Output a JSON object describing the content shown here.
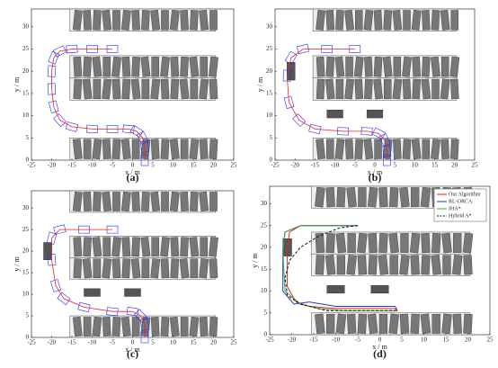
{
  "chart_data": [
    {
      "type": "line",
      "label": "(a)",
      "xlabel": "x / m",
      "ylabel": "y / m",
      "xlim": [
        -25,
        25
      ],
      "ylim": [
        0,
        34
      ],
      "xticks": [
        -25,
        -20,
        -15,
        -10,
        -5,
        0,
        5,
        10,
        15,
        20,
        25
      ],
      "yticks": [
        0,
        5,
        10,
        15,
        20,
        25,
        30
      ],
      "series": [
        {
          "color": "#1f2bff",
          "x": [
            -5,
            -10,
            -15,
            -18,
            -19.5,
            -20,
            -20,
            -19.5,
            -18,
            -15,
            -10,
            -5,
            -1,
            1,
            2.5,
            3,
            3
          ],
          "y": [
            25,
            25,
            25,
            24.5,
            23,
            20,
            16,
            12,
            9,
            7.5,
            7,
            7,
            7,
            6.5,
            5,
            3,
            0
          ]
        }
      ]
    },
    {
      "type": "line",
      "label": "(b)",
      "xlabel": "x / m",
      "ylabel": "y / m",
      "xlim": [
        -25,
        25
      ],
      "ylim": [
        0,
        34
      ],
      "xticks": [
        -25,
        -20,
        -15,
        -10,
        -5,
        0,
        5,
        10,
        15,
        20,
        25
      ],
      "yticks": [
        0,
        5,
        10,
        15,
        20,
        25,
        30
      ],
      "series": [
        {
          "color": "#1f2bff",
          "x": [
            -5,
            -12,
            -18,
            -21,
            -22,
            -21.5,
            -19,
            -15,
            -8,
            -2,
            1,
            2.5,
            3,
            3
          ],
          "y": [
            25,
            25,
            25,
            23,
            19,
            13,
            9,
            7,
            6.5,
            6.5,
            6,
            4.5,
            2,
            0
          ]
        }
      ]
    },
    {
      "type": "line",
      "label": "(c)",
      "xlabel": "x / m",
      "ylabel": "y / m",
      "xlim": [
        -25,
        25
      ],
      "ylim": [
        0,
        34
      ],
      "xticks": [
        -25,
        -20,
        -15,
        -10,
        -5,
        0,
        5,
        10,
        15,
        20,
        25
      ],
      "yticks": [
        0,
        5,
        10,
        15,
        20,
        25,
        30
      ],
      "series": [
        {
          "color": "#1f2bff",
          "x": [
            -5,
            -12,
            -18,
            -20,
            -20,
            -19,
            -17,
            -12,
            -5,
            0,
            2,
            3,
            3
          ],
          "y": [
            25,
            25,
            25,
            23,
            18,
            12,
            9,
            7,
            6,
            6,
            5,
            3,
            0
          ]
        }
      ]
    },
    {
      "type": "line",
      "label": "(d)",
      "xlabel": "x / m",
      "ylabel": "y / m",
      "xlim": [
        -25,
        25
      ],
      "ylim": [
        0,
        34
      ],
      "xticks": [
        -25,
        -20,
        -15,
        -10,
        -5,
        0,
        5,
        10,
        15,
        20,
        25
      ],
      "yticks": [
        0,
        5,
        10,
        15,
        20,
        25,
        30
      ],
      "legend": "upper right",
      "series": [
        {
          "name": "Our Algorithm",
          "color": "#e8261e",
          "style": "solid",
          "x": [
            -5,
            -12,
            -18,
            -20.5,
            -21,
            -21,
            -19,
            -16,
            -10,
            -3,
            1,
            3.5,
            4
          ],
          "y": [
            25,
            25,
            25,
            23.5,
            20,
            11,
            7.5,
            6.5,
            6,
            6,
            6,
            6,
            5.5
          ]
        },
        {
          "name": "RL-ORCA",
          "color": "#1f3bcc",
          "style": "solid",
          "x": [
            -5,
            -12,
            -18,
            -21.5,
            -22,
            -22,
            -19.5,
            -16,
            -10,
            -3,
            1,
            3.5,
            4
          ],
          "y": [
            25,
            25,
            25,
            23.5,
            20,
            10,
            7,
            7.5,
            6.5,
            6.5,
            6.5,
            6.5,
            5.5
          ]
        },
        {
          "name": "IHA*",
          "color": "#3aa83a",
          "style": "solid",
          "x": [
            -5,
            -12,
            -18,
            -21.5,
            -22,
            -21.5,
            -18,
            -14,
            -8,
            -2,
            1,
            3.5,
            4
          ],
          "y": [
            25,
            25,
            25,
            23.5,
            19,
            10,
            7,
            6,
            5.5,
            5.5,
            5.5,
            5.5,
            5.5
          ]
        },
        {
          "name": "Hybrid A*",
          "color": "#111111",
          "style": "dashed",
          "x": [
            -5,
            -9,
            -14,
            -18,
            -20.5,
            -21.5,
            -21,
            -18,
            -12,
            -5,
            0,
            3.5,
            4
          ],
          "y": [
            25,
            24.5,
            22.5,
            20,
            17,
            13,
            9,
            7,
            5.5,
            5.5,
            5.5,
            5.5,
            5.5
          ]
        }
      ]
    }
  ]
}
